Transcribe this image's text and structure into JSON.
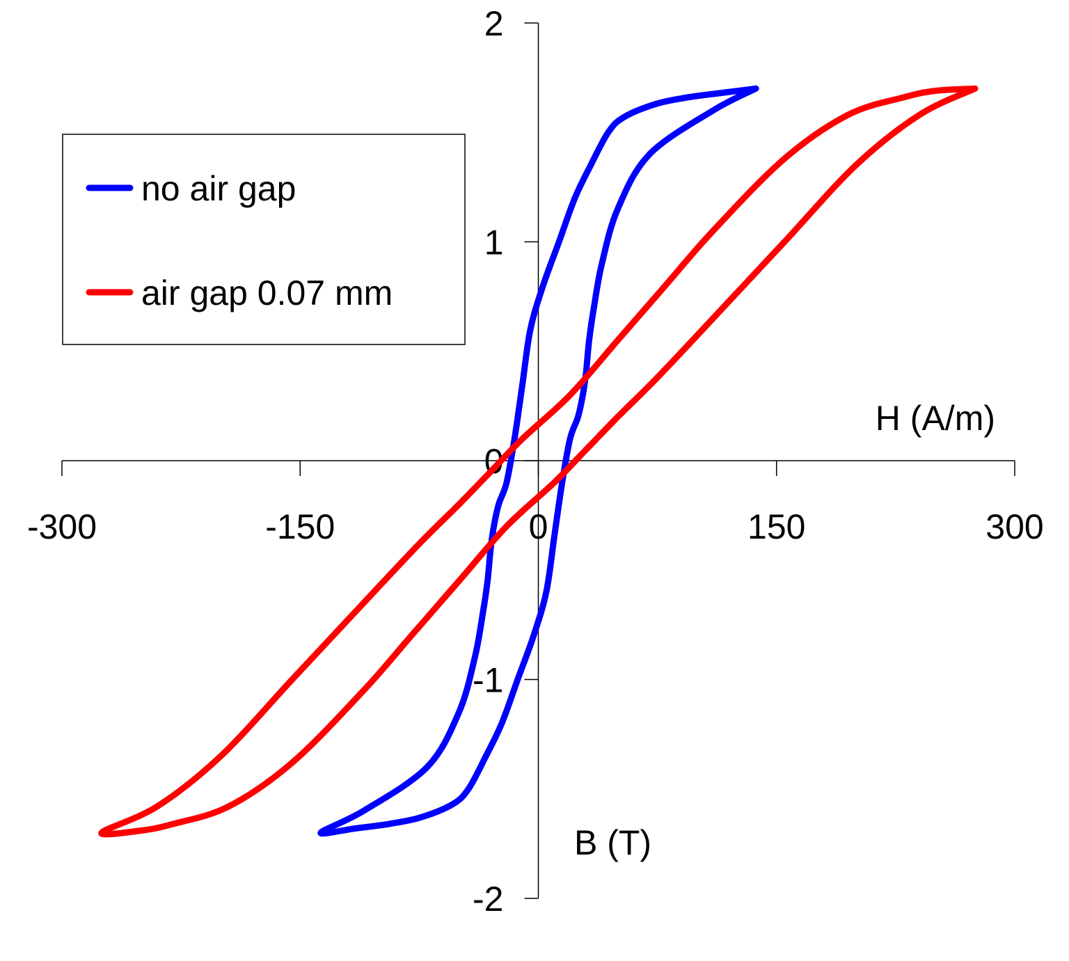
{
  "chart_data": {
    "type": "line",
    "xlabel": "H (A/m)",
    "ylabel": "B (T)",
    "xlim": [
      -300,
      300
    ],
    "ylim": [
      -2,
      2
    ],
    "xticks": [
      -300,
      -150,
      0,
      150,
      300
    ],
    "yticks": [
      -2,
      -1,
      0,
      1,
      2
    ],
    "grid": false,
    "legend_position": "top-left",
    "series": [
      {
        "name": "no air gap",
        "color": "#0000ff",
        "x": [
          137,
          110,
          70,
          50,
          40,
          35,
          32,
          30,
          28,
          25,
          20,
          15,
          10,
          5,
          -3,
          -13,
          -23,
          -33,
          -44,
          -54,
          -74,
          -94,
          -115,
          -137,
          -110,
          -70,
          -50,
          -40,
          -35,
          -32,
          -30,
          -28,
          -25,
          -20,
          -15,
          -10,
          -5,
          3,
          13,
          23,
          33,
          44,
          54,
          74,
          94,
          115,
          137
        ],
        "y": [
          1.7,
          1.6,
          1.4,
          1.15,
          0.9,
          0.7,
          0.55,
          0.4,
          0.3,
          0.2,
          0.1,
          -0.1,
          -0.35,
          -0.6,
          -0.8,
          -1.0,
          -1.2,
          -1.35,
          -1.5,
          -1.57,
          -1.63,
          -1.66,
          -1.68,
          -1.7,
          -1.6,
          -1.4,
          -1.15,
          -0.9,
          -0.7,
          -0.55,
          -0.4,
          -0.3,
          -0.2,
          -0.1,
          0.1,
          0.35,
          0.6,
          0.8,
          1.0,
          1.2,
          1.35,
          1.5,
          1.57,
          1.63,
          1.66,
          1.68,
          1.7
        ]
      },
      {
        "name": "air gap 0.07 mm",
        "color": "#ff0000",
        "x": [
          275,
          240,
          200,
          155,
          110,
          75,
          50,
          30,
          10,
          -20,
          -50,
          -80,
          -110,
          -155,
          -195,
          -230,
          -250,
          -275,
          -240,
          -200,
          -155,
          -110,
          -75,
          -50,
          -30,
          -10,
          20,
          50,
          80,
          110,
          155,
          195,
          230,
          250,
          275
        ],
        "y": [
          1.7,
          1.58,
          1.35,
          1.0,
          0.65,
          0.38,
          0.2,
          0.05,
          -0.1,
          -0.3,
          -0.55,
          -0.8,
          -1.05,
          -1.38,
          -1.58,
          -1.66,
          -1.69,
          -1.7,
          -1.58,
          -1.35,
          -1.0,
          -0.65,
          -0.38,
          -0.2,
          -0.05,
          0.1,
          0.3,
          0.55,
          0.8,
          1.05,
          1.38,
          1.58,
          1.66,
          1.69,
          1.7
        ]
      }
    ]
  }
}
